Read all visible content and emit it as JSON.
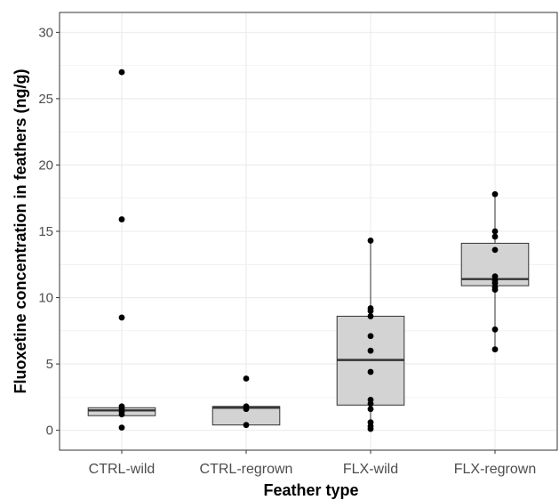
{
  "chart_data": {
    "type": "box",
    "title": "",
    "xlabel": "Feather type",
    "ylabel": "Fluoxetine concentration in feathers (ng/g)",
    "ylim": [
      -1.5,
      31.5
    ],
    "yticks": [
      0,
      5,
      10,
      15,
      20,
      25,
      30
    ],
    "grid": true,
    "colors": {
      "box_fill": "#d3d3d3",
      "box_stroke": "#333333",
      "point": "#000000",
      "grid": "#ebebeb"
    },
    "categories": [
      "CTRL-wild",
      "CTRL-regrown",
      "FLX-wild",
      "FLX-regrown"
    ],
    "boxes": [
      {
        "category": "CTRL-wild",
        "q1": 1.1,
        "median": 1.5,
        "q3": 1.7,
        "whisker_low": 1.1,
        "whisker_high": 1.7
      },
      {
        "category": "CTRL-regrown",
        "q1": 0.4,
        "median": 1.7,
        "q3": 1.8,
        "whisker_low": 0.4,
        "whisker_high": 1.8
      },
      {
        "category": "FLX-wild",
        "q1": 1.9,
        "median": 5.3,
        "q3": 8.6,
        "whisker_low": 0.1,
        "whisker_high": 14.3
      },
      {
        "category": "FLX-regrown",
        "q1": 10.9,
        "median": 11.4,
        "q3": 14.1,
        "whisker_low": 6.1,
        "whisker_high": 17.8
      }
    ],
    "points": [
      {
        "category": "CTRL-wild",
        "values": [
          27.0,
          15.9,
          8.5,
          1.8,
          1.6,
          1.4,
          1.2,
          0.2
        ]
      },
      {
        "category": "CTRL-regrown",
        "values": [
          3.9,
          1.8,
          1.6,
          0.4
        ]
      },
      {
        "category": "FLX-wild",
        "values": [
          14.3,
          9.2,
          9.0,
          8.6,
          7.1,
          6.0,
          4.4,
          2.3,
          2.0,
          1.6,
          0.6,
          0.3,
          0.1
        ]
      },
      {
        "category": "FLX-regrown",
        "values": [
          17.8,
          15.0,
          14.6,
          13.6,
          11.6,
          11.3,
          11.1,
          10.8,
          10.6,
          7.6,
          6.1
        ]
      }
    ]
  }
}
